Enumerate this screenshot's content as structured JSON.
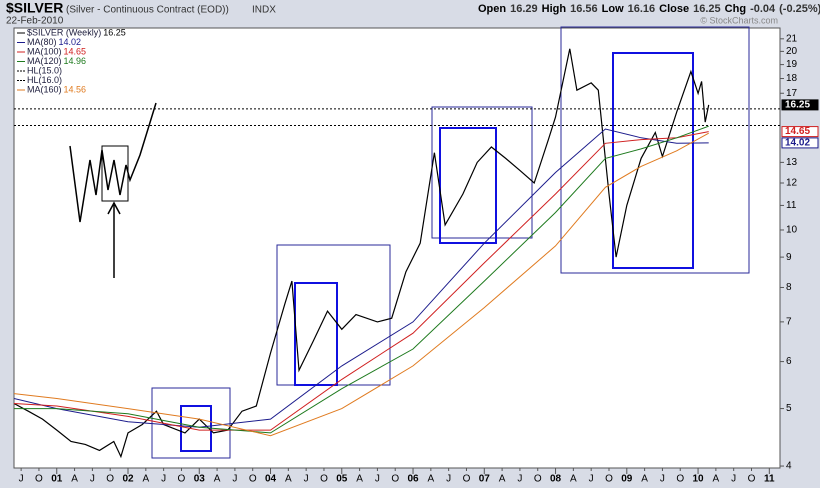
{
  "chart_data": {
    "type": "line",
    "title": "$SILVER",
    "subtitle": "(Silver - Continuous Contract (EOD))",
    "exchange": "INDX",
    "date": "22-Feb-2010",
    "watermark": "© StockCharts.com",
    "quote": [
      {
        "label": "Open",
        "value": 16.29
      },
      {
        "label": "High",
        "value": 16.56
      },
      {
        "label": "Low",
        "value": 16.16
      },
      {
        "label": "Close",
        "value": 16.25
      },
      {
        "label": "Chg",
        "value": -0.04
      }
    ],
    "chg_pct": {
      "value": -0.25,
      "label": "(-0.25%)"
    },
    "log_scale": true,
    "xlim": [
      2000.4,
      2011.15
    ],
    "ylim": [
      3.97,
      21.9
    ],
    "xticks": [
      {
        "value": 2000.5,
        "label": "J"
      },
      {
        "value": 2000.75,
        "label": "O"
      },
      {
        "value": 2001,
        "label": "01"
      },
      {
        "value": 2001.25,
        "label": "A"
      },
      {
        "value": 2001.5,
        "label": "J"
      },
      {
        "value": 2001.75,
        "label": "O"
      },
      {
        "value": 2002,
        "label": "02"
      },
      {
        "value": 2002.25,
        "label": "A"
      },
      {
        "value": 2002.5,
        "label": "J"
      },
      {
        "value": 2002.75,
        "label": "O"
      },
      {
        "value": 2003,
        "label": "03"
      },
      {
        "value": 2003.25,
        "label": "A"
      },
      {
        "value": 2003.5,
        "label": "J"
      },
      {
        "value": 2003.75,
        "label": "O"
      },
      {
        "value": 2004,
        "label": "04"
      },
      {
        "value": 2004.25,
        "label": "A"
      },
      {
        "value": 2004.5,
        "label": "J"
      },
      {
        "value": 2004.75,
        "label": "O"
      },
      {
        "value": 2005,
        "label": "05"
      },
      {
        "value": 2005.25,
        "label": "A"
      },
      {
        "value": 2005.5,
        "label": "J"
      },
      {
        "value": 2005.75,
        "label": "O"
      },
      {
        "value": 2006,
        "label": "06"
      },
      {
        "value": 2006.25,
        "label": "A"
      },
      {
        "value": 2006.5,
        "label": "J"
      },
      {
        "value": 2006.75,
        "label": "O"
      },
      {
        "value": 2007,
        "label": "07"
      },
      {
        "value": 2007.25,
        "label": "A"
      },
      {
        "value": 2007.5,
        "label": "J"
      },
      {
        "value": 2007.75,
        "label": "O"
      },
      {
        "value": 2008,
        "label": "08"
      },
      {
        "value": 2008.25,
        "label": "A"
      },
      {
        "value": 2008.5,
        "label": "J"
      },
      {
        "value": 2008.75,
        "label": "O"
      },
      {
        "value": 2009,
        "label": "09"
      },
      {
        "value": 2009.25,
        "label": "A"
      },
      {
        "value": 2009.5,
        "label": "J"
      },
      {
        "value": 2009.75,
        "label": "O"
      },
      {
        "value": 2010,
        "label": "10"
      },
      {
        "value": 2010.25,
        "label": "A"
      },
      {
        "value": 2010.5,
        "label": "J"
      },
      {
        "value": 2010.75,
        "label": "O"
      },
      {
        "value": 2011,
        "label": "11"
      }
    ],
    "yticks": [
      4,
      5,
      6,
      7,
      8,
      9,
      10,
      11,
      12,
      13,
      17,
      18,
      19,
      20,
      21
    ],
    "hlines": [
      {
        "name": "HL(15.0)",
        "value": 15
      },
      {
        "name": "HL(16.0)",
        "value": 16
      }
    ],
    "series": [
      {
        "name": "$SILVER (Weekly)",
        "last": 16.25,
        "color": "#000000",
        "x": [
          2000.4,
          2000.6,
          2000.8,
          2001.0,
          2001.2,
          2001.4,
          2001.6,
          2001.8,
          2001.9,
          2002.0,
          2002.2,
          2002.4,
          2002.5,
          2002.8,
          2003.0,
          2003.2,
          2003.4,
          2003.6,
          2003.8,
          2004.0,
          2004.2,
          2004.3,
          2004.4,
          2004.6,
          2004.8,
          2005.0,
          2005.2,
          2005.5,
          2005.7,
          2005.9,
          2006.1,
          2006.3,
          2006.45,
          2006.7,
          2006.9,
          2007.1,
          2007.3,
          2007.5,
          2007.7,
          2007.9,
          2008.0,
          2008.2,
          2008.3,
          2008.5,
          2008.6,
          2008.75,
          2008.85,
          2009.0,
          2009.2,
          2009.4,
          2009.5,
          2009.7,
          2009.9,
          2010.0,
          2010.05,
          2010.1,
          2010.15
        ],
        "values": [
          5.1,
          4.95,
          4.8,
          4.6,
          4.4,
          4.35,
          4.25,
          4.4,
          4.15,
          4.55,
          4.7,
          4.95,
          4.7,
          4.55,
          4.8,
          4.55,
          4.6,
          4.95,
          5.05,
          6.2,
          7.5,
          8.2,
          5.8,
          6.5,
          7.3,
          6.8,
          7.2,
          7.0,
          7.1,
          8.5,
          9.5,
          13.5,
          10.2,
          11.5,
          13.0,
          13.8,
          13.2,
          12.6,
          12.0,
          14.2,
          15.5,
          20.2,
          17.2,
          17.7,
          17.2,
          11.5,
          9.0,
          11.0,
          13.2,
          14.6,
          13.3,
          15.8,
          18.5,
          17.0,
          17.8,
          15.2,
          16.25
        ]
      },
      {
        "name": "MA(80)",
        "last": 14.02,
        "color": "#1c1c8c",
        "x": [
          2000.4,
          2001,
          2002,
          2003,
          2004,
          2005,
          2006,
          2007,
          2008,
          2008.7,
          2009.2,
          2009.7,
          2010.15
        ],
        "values": [
          5.2,
          5.0,
          4.75,
          4.65,
          4.8,
          5.9,
          7.0,
          9.5,
          12.5,
          14.8,
          14.3,
          14.0,
          14.02
        ]
      },
      {
        "name": "MA(100)",
        "last": 14.65,
        "color": "#d02020",
        "x": [
          2000.4,
          2001,
          2002,
          2003,
          2004,
          2005,
          2006,
          2007,
          2008,
          2008.7,
          2009.2,
          2009.7,
          2010.15
        ],
        "values": [
          5.1,
          5.05,
          4.85,
          4.6,
          4.6,
          5.6,
          6.7,
          8.8,
          11.5,
          14.0,
          14.2,
          14.3,
          14.65
        ]
      },
      {
        "name": "MA(120)",
        "last": 14.96,
        "color": "#1e7a1e",
        "x": [
          2000.4,
          2001,
          2002,
          2003,
          2004,
          2005,
          2006,
          2007,
          2008,
          2008.7,
          2009.2,
          2009.7,
          2010.15
        ],
        "values": [
          5.0,
          5.0,
          4.9,
          4.65,
          4.55,
          5.4,
          6.3,
          8.2,
          10.7,
          13.2,
          13.7,
          14.3,
          14.96
        ]
      },
      {
        "name": "MA(160)",
        "last": 14.56,
        "color": "#e07b20",
        "x": [
          2000.4,
          2001,
          2002,
          2003,
          2004,
          2005,
          2006,
          2007,
          2008,
          2008.7,
          2009.2,
          2009.7,
          2010.15
        ],
        "values": [
          5.3,
          5.2,
          5.0,
          4.8,
          4.5,
          5.0,
          5.9,
          7.4,
          9.4,
          11.8,
          12.8,
          13.6,
          14.56
        ]
      }
    ]
  }
}
